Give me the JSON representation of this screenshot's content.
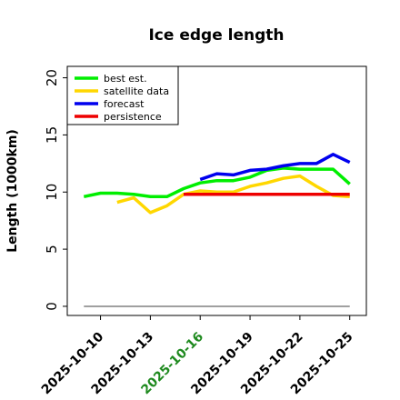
{
  "chart_data": {
    "type": "line",
    "title": "Ice edge length",
    "xlabel": "",
    "ylabel": "Length (1000km)",
    "ylim": [
      -0.8,
      21
    ],
    "xlim": [
      "2025-10-08",
      "2025-10-26"
    ],
    "yticks": [
      "0",
      "5",
      "10",
      "15",
      "20"
    ],
    "xticks": [
      {
        "label": "2025-10-10",
        "color": "#000000"
      },
      {
        "label": "2025-10-13",
        "color": "#000000"
      },
      {
        "label": "2025-10-16",
        "color": "#1f8a1f"
      },
      {
        "label": "2025-10-19",
        "color": "#000000"
      },
      {
        "label": "2025-10-22",
        "color": "#000000"
      },
      {
        "label": "2025-10-25",
        "color": "#000000"
      }
    ],
    "legend_position": "top-left",
    "grid": false,
    "series": [
      {
        "name": "best est.",
        "color": "#00ee00",
        "points": [
          [
            "2025-10-09",
            9.6
          ],
          [
            "2025-10-10",
            9.9
          ],
          [
            "2025-10-11",
            9.9
          ],
          [
            "2025-10-12",
            9.8
          ],
          [
            "2025-10-13",
            9.6
          ],
          [
            "2025-10-14",
            9.6
          ],
          [
            "2025-10-15",
            10.3
          ],
          [
            "2025-10-16",
            10.8
          ],
          [
            "2025-10-17",
            11.0
          ],
          [
            "2025-10-18",
            11.0
          ],
          [
            "2025-10-19",
            11.3
          ],
          [
            "2025-10-20",
            11.9
          ],
          [
            "2025-10-21",
            12.1
          ],
          [
            "2025-10-22",
            12.0
          ],
          [
            "2025-10-23",
            12.0
          ],
          [
            "2025-10-24",
            12.0
          ],
          [
            "2025-10-25",
            10.7
          ]
        ]
      },
      {
        "name": "satellite data",
        "color": "#ffd700",
        "points": [
          [
            "2025-10-11",
            9.1
          ],
          [
            "2025-10-12",
            9.5
          ],
          [
            "2025-10-13",
            8.2
          ],
          [
            "2025-10-14",
            8.8
          ],
          [
            "2025-10-15",
            9.8
          ],
          [
            "2025-10-16",
            10.1
          ],
          [
            "2025-10-17",
            10.0
          ],
          [
            "2025-10-18",
            10.0
          ],
          [
            "2025-10-19",
            10.5
          ],
          [
            "2025-10-20",
            10.8
          ],
          [
            "2025-10-21",
            11.2
          ],
          [
            "2025-10-22",
            11.4
          ],
          [
            "2025-10-23",
            10.5
          ],
          [
            "2025-10-24",
            9.7
          ],
          [
            "2025-10-25",
            9.6
          ]
        ]
      },
      {
        "name": "forecast",
        "color": "#0000ee",
        "points": [
          [
            "2025-10-16",
            11.1
          ],
          [
            "2025-10-17",
            11.6
          ],
          [
            "2025-10-18",
            11.5
          ],
          [
            "2025-10-19",
            11.9
          ],
          [
            "2025-10-20",
            12.0
          ],
          [
            "2025-10-21",
            12.3
          ],
          [
            "2025-10-22",
            12.5
          ],
          [
            "2025-10-23",
            12.5
          ],
          [
            "2025-10-24",
            13.3
          ],
          [
            "2025-10-25",
            12.6
          ]
        ]
      },
      {
        "name": "persistence",
        "color": "#ee0000",
        "points": [
          [
            "2025-10-15",
            9.8
          ],
          [
            "2025-10-25",
            9.8
          ]
        ]
      }
    ],
    "baseline": {
      "color": "#808080",
      "points": [
        [
          "2025-10-09",
          0.0
        ],
        [
          "2025-10-25",
          0.0
        ]
      ]
    }
  }
}
